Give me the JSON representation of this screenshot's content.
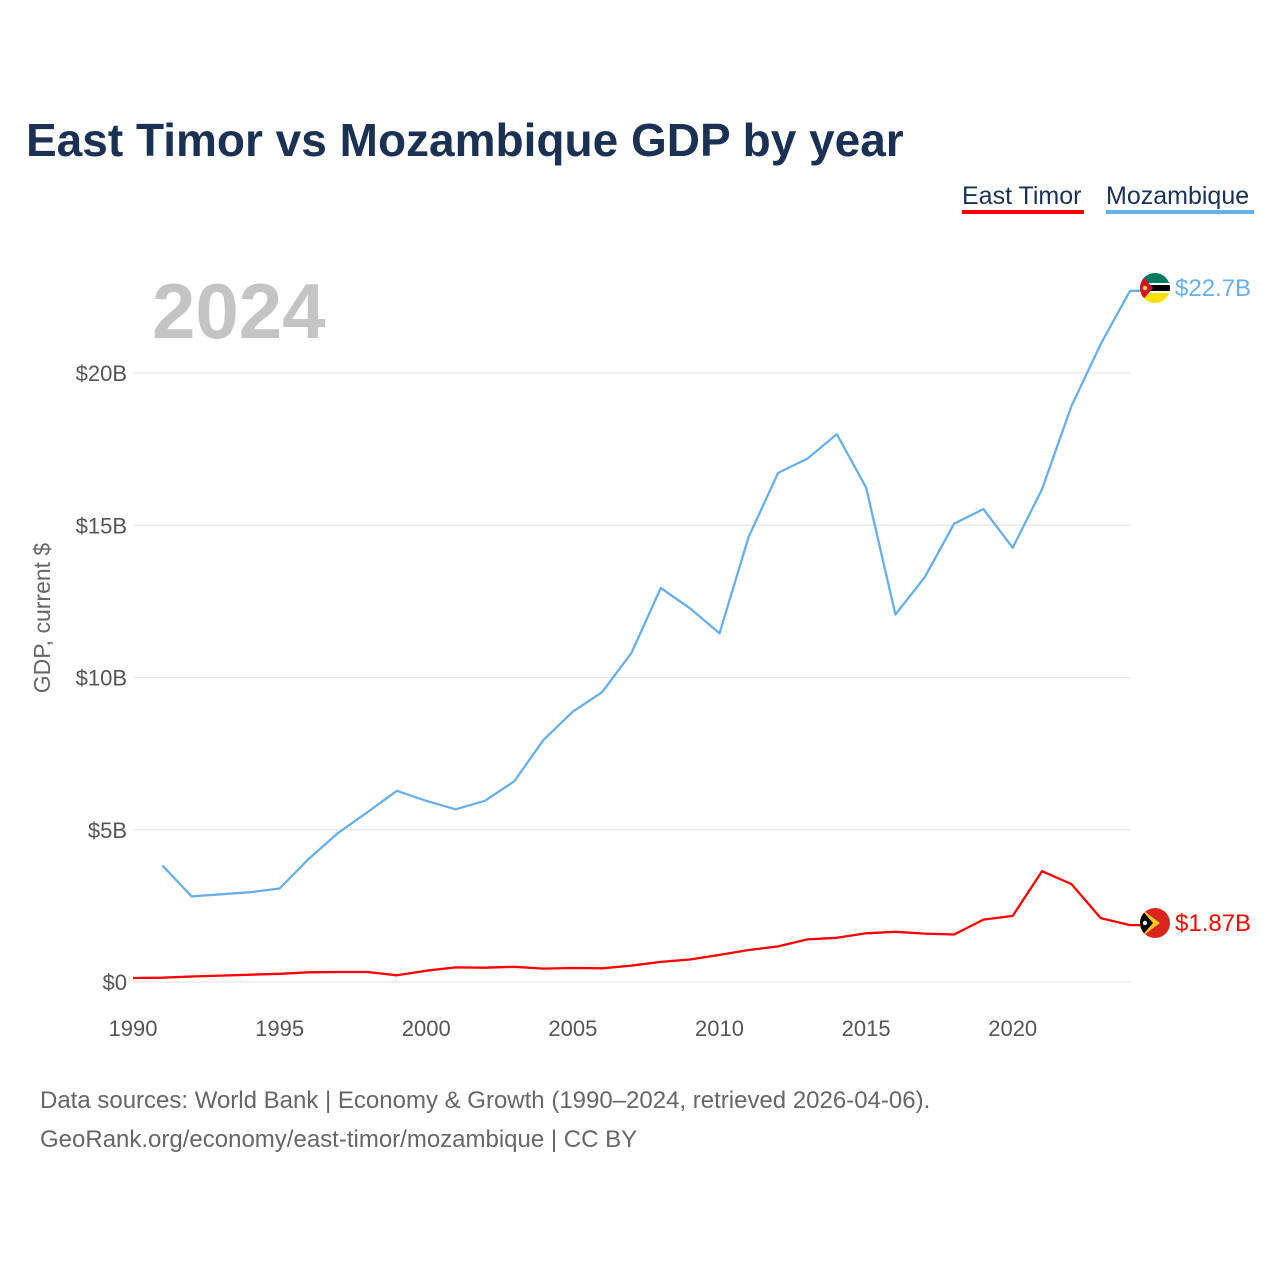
{
  "colors": {
    "east_timor": "#ff0000",
    "mozambique": "#6aaee6",
    "title": "#1b3153",
    "grid": "#e6e6e6",
    "tick_text": "#555555",
    "year_watermark": "#c4c4c4"
  },
  "chart_data": {
    "type": "line",
    "title": "East Timor vs Mozambique GDP by year",
    "ylabel": "GDP, current $",
    "xlabel": "",
    "current_year": "2024",
    "xlim": [
      1990,
      2024
    ],
    "ylim": [
      0,
      23
    ],
    "x_ticks": [
      1990,
      1995,
      2000,
      2005,
      2010,
      2015,
      2020
    ],
    "x_tick_labels": [
      "1990",
      "1995",
      "2000",
      "2005",
      "2010",
      "2015",
      "2020"
    ],
    "y_ticks": [
      0,
      5,
      10,
      15,
      20
    ],
    "y_tick_labels": [
      "$0",
      "$5B",
      "$10B",
      "$15B",
      "$20B"
    ],
    "units": "billions of current US dollars",
    "legend": [
      {
        "label": "East Timor",
        "color": "#ff0000"
      },
      {
        "label": "Mozambique",
        "color": "#6aaee6"
      }
    ],
    "series": [
      {
        "name": "East Timor",
        "color": "#ff0000",
        "end_label": "$1.87B",
        "flag": "east-timor-flag",
        "x": [
          1990,
          1991,
          1992,
          1993,
          1994,
          1995,
          1996,
          1997,
          1998,
          1999,
          2000,
          2001,
          2002,
          2003,
          2004,
          2005,
          2006,
          2007,
          2008,
          2009,
          2010,
          2011,
          2012,
          2013,
          2014,
          2015,
          2016,
          2017,
          2018,
          2019,
          2020,
          2021,
          2022,
          2023,
          2024
        ],
        "values": [
          0.13,
          0.14,
          0.18,
          0.21,
          0.24,
          0.27,
          0.32,
          0.33,
          0.33,
          0.22,
          0.37,
          0.48,
          0.47,
          0.5,
          0.44,
          0.46,
          0.45,
          0.54,
          0.66,
          0.74,
          0.89,
          1.05,
          1.17,
          1.4,
          1.45,
          1.6,
          1.65,
          1.59,
          1.56,
          2.05,
          2.17,
          3.64,
          3.22,
          2.1,
          1.87
        ]
      },
      {
        "name": "Mozambique",
        "color": "#6aaee6",
        "end_label": "$22.7B",
        "flag": "mozambique-flag",
        "x": [
          1991,
          1992,
          1993,
          1994,
          1995,
          1996,
          1997,
          1998,
          1999,
          2000,
          2001,
          2002,
          2003,
          2004,
          2005,
          2006,
          2007,
          2008,
          2009,
          2010,
          2011,
          2012,
          2013,
          2014,
          2015,
          2016,
          2017,
          2018,
          2019,
          2020,
          2021,
          2022,
          2023,
          2024
        ],
        "values": [
          3.83,
          2.81,
          2.88,
          2.95,
          3.07,
          4.05,
          4.9,
          5.58,
          6.28,
          5.95,
          5.67,
          5.95,
          6.59,
          7.95,
          8.88,
          9.52,
          10.81,
          12.94,
          12.27,
          11.45,
          14.63,
          16.72,
          17.19,
          17.99,
          16.24,
          12.07,
          13.29,
          15.05,
          15.53,
          14.26,
          16.18,
          18.91,
          20.95,
          22.7
        ]
      }
    ]
  },
  "source": {
    "line1": "Data sources: World Bank | Economy & Growth (1990–2024, retrieved 2026-04-06).",
    "line2": "GeoRank.org/economy/east-timor/mozambique | CC BY"
  }
}
